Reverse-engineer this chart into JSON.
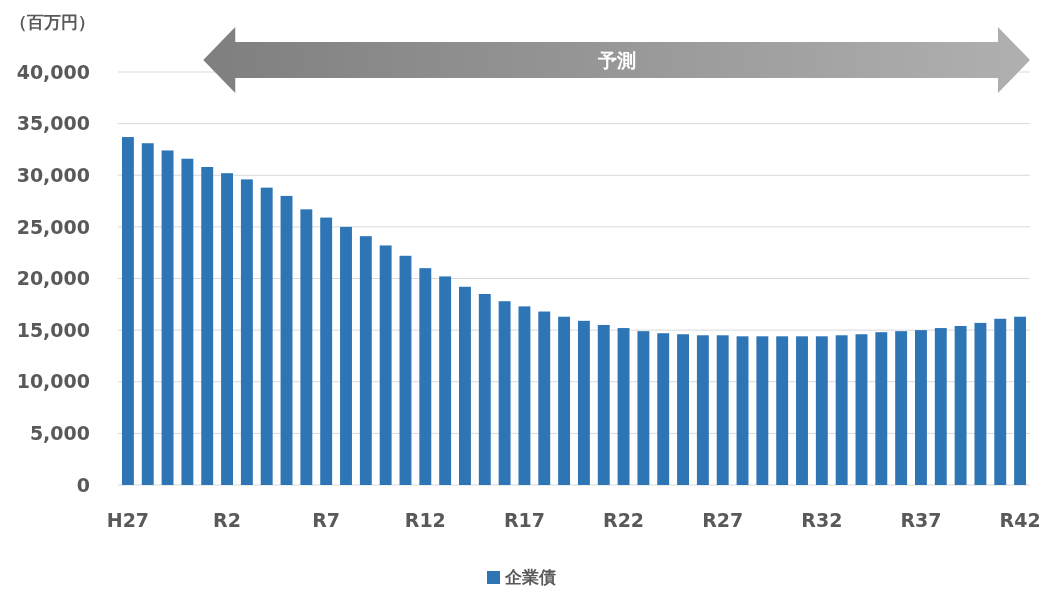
{
  "chart_data": {
    "type": "bar",
    "ylabel": "（百万円）",
    "annotations": [
      "予測"
    ],
    "categories": [
      "H27",
      null,
      null,
      null,
      null,
      "R2",
      null,
      null,
      null,
      null,
      "R7",
      null,
      null,
      null,
      null,
      "R12",
      null,
      null,
      null,
      null,
      "R17",
      null,
      null,
      null,
      null,
      "R22",
      null,
      null,
      null,
      null,
      "R27",
      null,
      null,
      null,
      null,
      "R32",
      null,
      null,
      null,
      null,
      "R37",
      null,
      null,
      null,
      null,
      "R42"
    ],
    "series": [
      {
        "name": "企業債",
        "color": "#2e75b6",
        "values": [
          33700,
          33100,
          32400,
          31600,
          30800,
          30200,
          29600,
          28800,
          28000,
          26700,
          25900,
          25000,
          24100,
          23200,
          22200,
          21000,
          20200,
          19200,
          18500,
          17800,
          17300,
          16800,
          16300,
          15900,
          15500,
          15200,
          14900,
          14700,
          14600,
          14500,
          14500,
          14400,
          14400,
          14400,
          14400,
          14400,
          14500,
          14600,
          14800,
          14900,
          15000,
          15200,
          15400,
          15700,
          16100,
          16300
        ]
      }
    ],
    "ylim": [
      0,
      40000
    ],
    "yticks": [
      {
        "value": 0,
        "label": "0"
      },
      {
        "value": 5000,
        "label": "5,000"
      },
      {
        "value": 10000,
        "label": "10,000"
      },
      {
        "value": 15000,
        "label": "15,000"
      },
      {
        "value": 20000,
        "label": "20,000"
      },
      {
        "value": 25000,
        "label": "25,000"
      },
      {
        "value": 30000,
        "label": "30,000"
      },
      {
        "value": 35000,
        "label": "35,000"
      },
      {
        "value": 40000,
        "label": "40,000"
      }
    ],
    "grid": "y",
    "legend": "bottom"
  }
}
